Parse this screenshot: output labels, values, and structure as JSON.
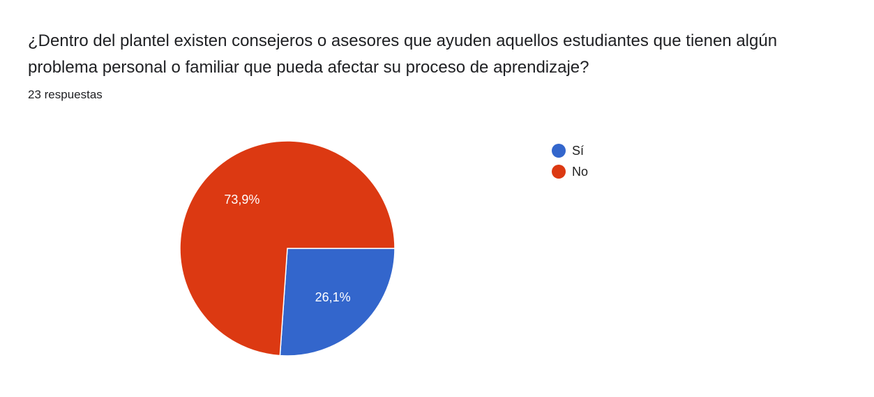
{
  "question": {
    "title": "¿Dentro del plantel existen consejeros o asesores que ayuden aquellos estudiantes que tienen algún problema personal o familiar que pueda afectar su proceso de aprendizaje?",
    "response_count": "23 respuestas"
  },
  "chart_data": {
    "type": "pie",
    "slices": [
      {
        "label": "Sí",
        "value": 26.1,
        "display": "26,1%",
        "color": "#3366cc"
      },
      {
        "label": "No",
        "value": 73.9,
        "display": "73,9%",
        "color": "#dc3912"
      }
    ],
    "legend_position": "right"
  }
}
